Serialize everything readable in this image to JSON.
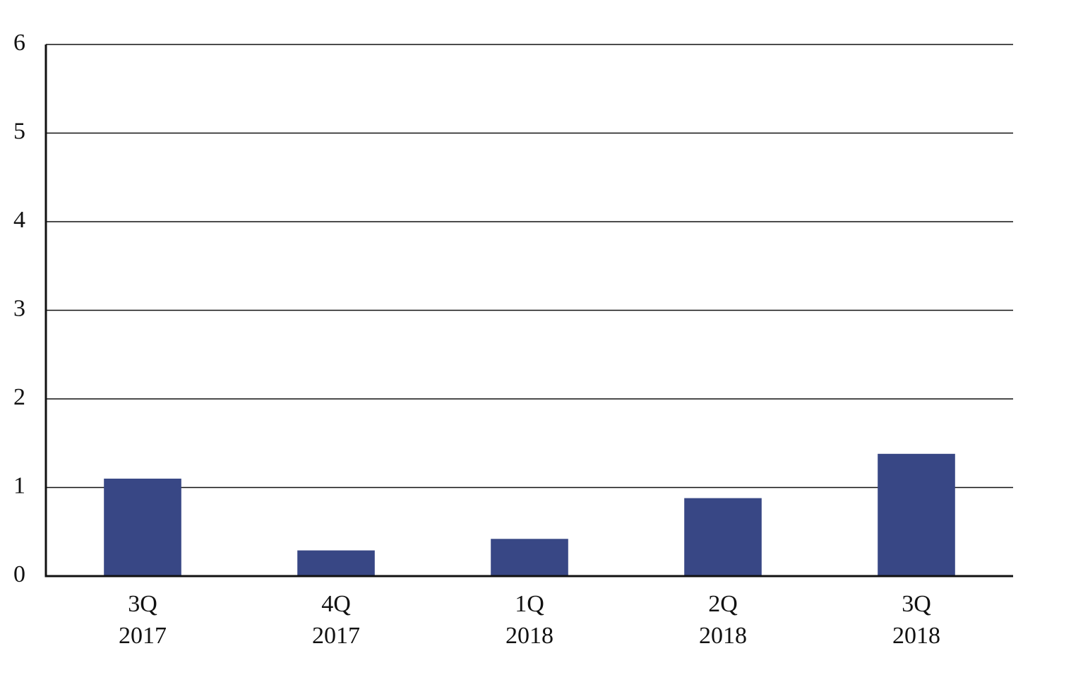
{
  "chart_data": {
    "type": "bar",
    "categories": [
      [
        "3Q",
        "2017"
      ],
      [
        "4Q",
        "2017"
      ],
      [
        "1Q",
        "2018"
      ],
      [
        "2Q",
        "2018"
      ],
      [
        "3Q",
        "2018"
      ]
    ],
    "values": [
      1.1,
      0.29,
      0.42,
      0.88,
      1.38
    ],
    "color": "#384785",
    "ylim": [
      0,
      6
    ],
    "yticks": [
      0,
      1,
      2,
      3,
      4,
      5,
      6
    ],
    "grid": true
  }
}
